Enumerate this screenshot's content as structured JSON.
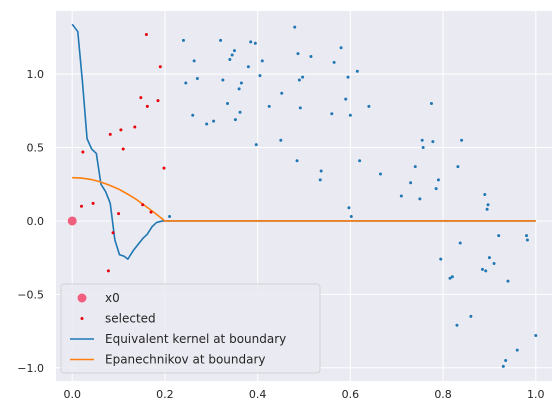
{
  "chart_data": {
    "type": "scatter",
    "title": "",
    "xlabel": "",
    "ylabel": "",
    "xlim": [
      -0.035,
      1.035
    ],
    "ylim": [
      -1.09,
      1.43
    ],
    "xticks": [
      0.0,
      0.2,
      0.4,
      0.6,
      0.8,
      1.0
    ],
    "xtick_labels": [
      "0.0",
      "0.2",
      "0.4",
      "0.6",
      "0.8",
      "1.0"
    ],
    "yticks": [
      -1.0,
      -0.5,
      0.0,
      0.5,
      1.0
    ],
    "ytick_labels": [
      "−1.0",
      "−0.5",
      "0.0",
      "0.5",
      "1.0"
    ],
    "grid": true,
    "legend_position": "lower-left",
    "colors": {
      "background": "#eaeaf2",
      "data_points": "#1f77b4",
      "x0": "#f0607e",
      "selected": "#e8000b",
      "equivalent_kernel": "#1f77b4",
      "epanechnikov": "#ff7f0e"
    },
    "legend": [
      {
        "label": "x0",
        "kind": "marker",
        "color": "#f0607e"
      },
      {
        "label": "selected",
        "kind": "dot",
        "color": "#e8000b"
      },
      {
        "label": "Equivalent kernel at boundary",
        "kind": "line",
        "color": "#1f77b4"
      },
      {
        "label": "Epanechnikov at boundary",
        "kind": "line",
        "color": "#ff7f0e"
      }
    ],
    "series": [
      {
        "kind": "scatter-small",
        "color": "#1f77b4",
        "points": [
          [
            0.21,
            0.03
          ],
          [
            0.24,
            1.23
          ],
          [
            0.245,
            0.94
          ],
          [
            0.26,
            0.72
          ],
          [
            0.263,
            1.09
          ],
          [
            0.27,
            0.97
          ],
          [
            0.29,
            0.66
          ],
          [
            0.305,
            0.68
          ],
          [
            0.32,
            1.23
          ],
          [
            0.325,
            0.96
          ],
          [
            0.335,
            0.8
          ],
          [
            0.34,
            1.1
          ],
          [
            0.345,
            1.13
          ],
          [
            0.35,
            1.16
          ],
          [
            0.352,
            0.69
          ],
          [
            0.36,
            0.9
          ],
          [
            0.362,
            0.74
          ],
          [
            0.365,
            0.94
          ],
          [
            0.38,
            1.05
          ],
          [
            0.385,
            1.22
          ],
          [
            0.395,
            1.21
          ],
          [
            0.397,
            0.52
          ],
          [
            0.405,
            0.99
          ],
          [
            0.41,
            1.09
          ],
          [
            0.425,
            0.78
          ],
          [
            0.45,
            0.55
          ],
          [
            0.452,
            0.87
          ],
          [
            0.48,
            1.32
          ],
          [
            0.485,
            0.41
          ],
          [
            0.487,
            1.14
          ],
          [
            0.49,
            0.96
          ],
          [
            0.492,
            0.77
          ],
          [
            0.497,
            0.98
          ],
          [
            0.515,
            1.12
          ],
          [
            0.535,
            0.28
          ],
          [
            0.537,
            0.34
          ],
          [
            0.56,
            0.73
          ],
          [
            0.565,
            1.08
          ],
          [
            0.58,
            1.18
          ],
          [
            0.59,
            0.83
          ],
          [
            0.595,
            0.98
          ],
          [
            0.597,
            0.09
          ],
          [
            0.6,
            0.72
          ],
          [
            0.602,
            0.03
          ],
          [
            0.615,
            1.02
          ],
          [
            0.62,
            0.41
          ],
          [
            0.64,
            0.78
          ],
          [
            0.665,
            0.32
          ],
          [
            0.71,
            0.17
          ],
          [
            0.73,
            0.26
          ],
          [
            0.74,
            0.37
          ],
          [
            0.75,
            0.15
          ],
          [
            0.755,
            0.55
          ],
          [
            0.757,
            0.5
          ],
          [
            0.775,
            0.8
          ],
          [
            0.778,
            0.54
          ],
          [
            0.785,
            0.22
          ],
          [
            0.79,
            0.28
          ],
          [
            0.795,
            -0.26
          ],
          [
            0.815,
            -0.39
          ],
          [
            0.82,
            -0.38
          ],
          [
            0.83,
            -0.71
          ],
          [
            0.832,
            0.37
          ],
          [
            0.837,
            -0.15
          ],
          [
            0.84,
            0.55
          ],
          [
            0.86,
            -0.65
          ],
          [
            0.885,
            -0.33
          ],
          [
            0.89,
            0.18
          ],
          [
            0.892,
            -0.34
          ],
          [
            0.895,
            0.08
          ],
          [
            0.897,
            0.11
          ],
          [
            0.9,
            -0.25
          ],
          [
            0.91,
            -0.29
          ],
          [
            0.92,
            -0.1
          ],
          [
            0.93,
            -0.99
          ],
          [
            0.935,
            -0.95
          ],
          [
            0.94,
            -0.41
          ],
          [
            0.96,
            -0.88
          ],
          [
            0.98,
            -0.1
          ],
          [
            0.982,
            -0.13
          ],
          [
            1.0,
            -0.78
          ]
        ]
      },
      {
        "name": "x0",
        "kind": "marker",
        "color": "#f0607e",
        "points": [
          [
            0.0,
            0.0
          ]
        ]
      },
      {
        "name": "selected",
        "kind": "scatter-small",
        "color": "#e8000b",
        "points": [
          [
            0.02,
            0.1
          ],
          [
            0.023,
            0.47
          ],
          [
            0.045,
            0.12
          ],
          [
            0.078,
            -0.34
          ],
          [
            0.082,
            0.59
          ],
          [
            0.088,
            -0.08
          ],
          [
            0.1,
            0.05
          ],
          [
            0.105,
            0.62
          ],
          [
            0.11,
            0.49
          ],
          [
            0.135,
            0.64
          ],
          [
            0.148,
            0.84
          ],
          [
            0.152,
            0.11
          ],
          [
            0.16,
            1.27
          ],
          [
            0.162,
            0.78
          ],
          [
            0.17,
            0.06
          ],
          [
            0.185,
            0.82
          ],
          [
            0.19,
            1.05
          ],
          [
            0.198,
            0.36
          ]
        ]
      },
      {
        "name": "Equivalent kernel at boundary",
        "kind": "line",
        "color": "#1f77b4",
        "points": [
          [
            0.0,
            1.34
          ],
          [
            0.012,
            1.29
          ],
          [
            0.022,
            0.95
          ],
          [
            0.032,
            0.56
          ],
          [
            0.042,
            0.49
          ],
          [
            0.052,
            0.46
          ],
          [
            0.062,
            0.25
          ],
          [
            0.072,
            0.2
          ],
          [
            0.082,
            0.12
          ],
          [
            0.092,
            -0.13
          ],
          [
            0.102,
            -0.23
          ],
          [
            0.112,
            -0.24
          ],
          [
            0.12,
            -0.26
          ],
          [
            0.132,
            -0.2
          ],
          [
            0.142,
            -0.16
          ],
          [
            0.152,
            -0.12
          ],
          [
            0.162,
            -0.09
          ],
          [
            0.172,
            -0.04
          ],
          [
            0.182,
            -0.01
          ],
          [
            0.195,
            0.0
          ],
          [
            0.21,
            0.0
          ],
          [
            1.0,
            0.0
          ]
        ]
      },
      {
        "name": "Epanechnikov at boundary",
        "kind": "line",
        "color": "#ff7f0e",
        "points": [
          [
            0.0,
            0.295
          ],
          [
            0.02,
            0.292
          ],
          [
            0.04,
            0.283
          ],
          [
            0.06,
            0.267
          ],
          [
            0.08,
            0.244
          ],
          [
            0.1,
            0.217
          ],
          [
            0.12,
            0.182
          ],
          [
            0.14,
            0.143
          ],
          [
            0.16,
            0.097
          ],
          [
            0.18,
            0.05
          ],
          [
            0.2,
            0.0
          ],
          [
            0.21,
            0.0
          ],
          [
            1.0,
            0.0
          ]
        ]
      }
    ]
  }
}
